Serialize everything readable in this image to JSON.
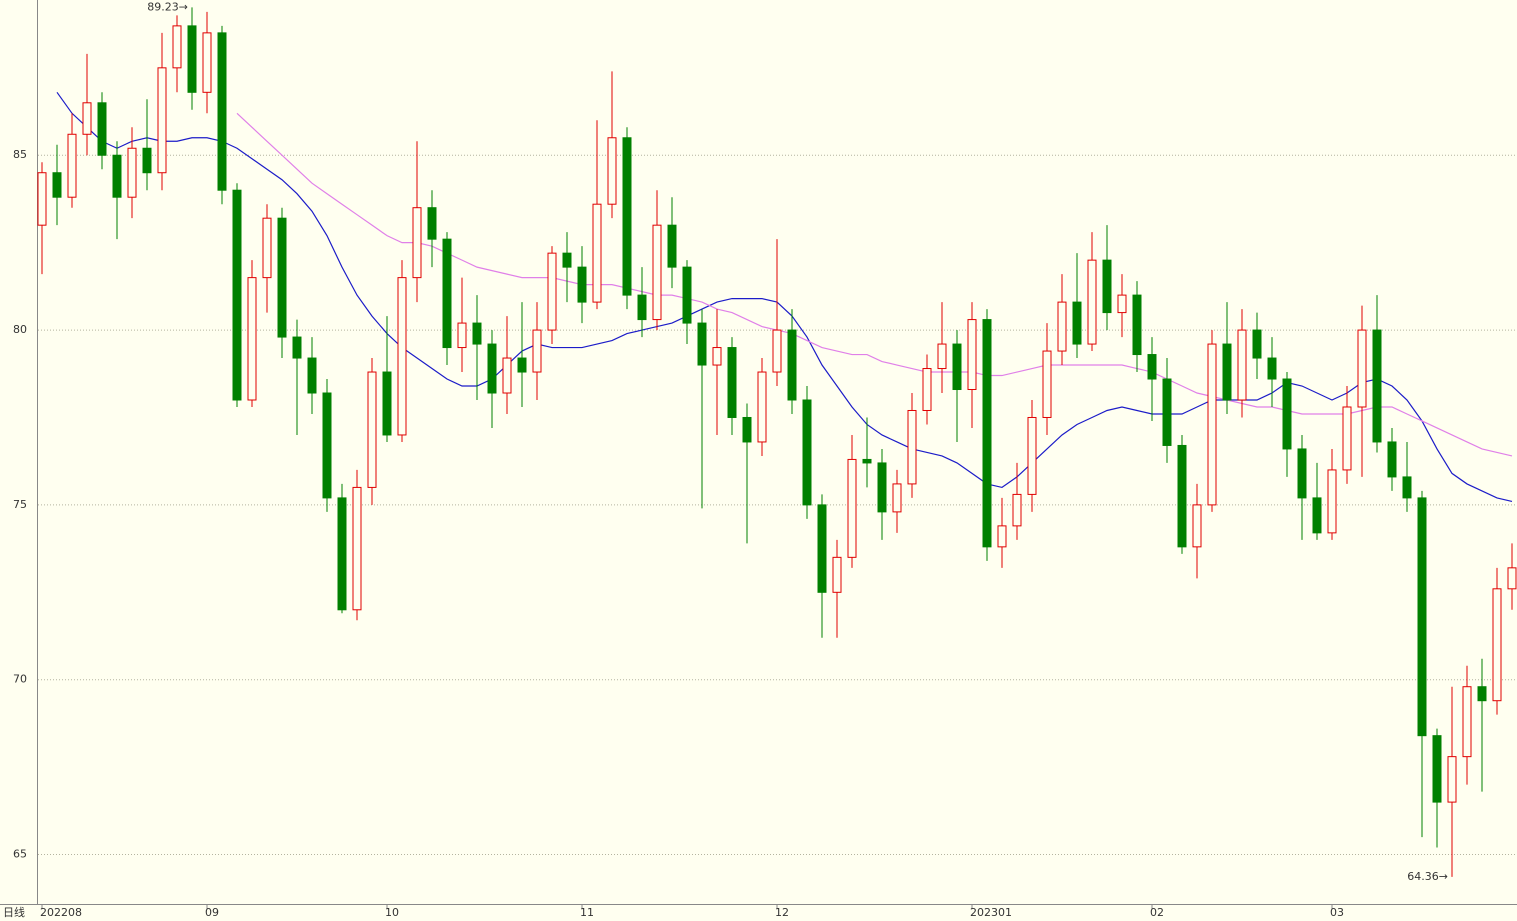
{
  "chart_data": {
    "type": "candlestick",
    "period_label": "日线",
    "categories": [
      "202208",
      null,
      null,
      null,
      null,
      null,
      null,
      null,
      null,
      null,
      null,
      "09",
      null,
      null,
      null,
      null,
      null,
      null,
      null,
      null,
      null,
      null,
      null,
      "10",
      null,
      null,
      null,
      null,
      null,
      null,
      null,
      null,
      null,
      null,
      null,
      null,
      "11",
      null,
      null,
      null,
      null,
      null,
      null,
      null,
      null,
      null,
      null,
      null,
      null,
      "12",
      null,
      null,
      null,
      null,
      null,
      null,
      null,
      null,
      null,
      null,
      null,
      null,
      "202301",
      null,
      null,
      null,
      null,
      null,
      null,
      null,
      null,
      null,
      null,
      null,
      "02",
      null,
      null,
      null,
      null,
      null,
      null,
      null,
      null,
      null,
      null,
      null,
      "03",
      null,
      null,
      null,
      null,
      null,
      null,
      null,
      null,
      null,
      null,
      null,
      null
    ],
    "ohlc": [
      [
        83.0,
        84.8,
        81.6,
        84.5
      ],
      [
        84.5,
        85.3,
        83.0,
        83.8
      ],
      [
        83.8,
        86.2,
        83.5,
        85.6
      ],
      [
        85.6,
        87.9,
        85.0,
        86.5
      ],
      [
        86.5,
        86.8,
        84.6,
        85.0
      ],
      [
        85.0,
        85.4,
        82.6,
        83.8
      ],
      [
        83.8,
        85.8,
        83.2,
        85.2
      ],
      [
        85.2,
        86.6,
        84.0,
        84.5
      ],
      [
        84.5,
        88.5,
        84.0,
        87.5
      ],
      [
        87.5,
        89.0,
        86.8,
        88.7
      ],
      [
        88.7,
        89.23,
        86.3,
        86.8
      ],
      [
        86.8,
        89.1,
        86.2,
        88.5
      ],
      [
        88.5,
        88.7,
        83.6,
        84.0
      ],
      [
        84.0,
        84.2,
        77.8,
        78.0
      ],
      [
        78.0,
        82.0,
        77.8,
        81.5
      ],
      [
        81.5,
        83.6,
        80.5,
        83.2
      ],
      [
        83.2,
        83.5,
        79.2,
        79.8
      ],
      [
        79.8,
        80.3,
        77.0,
        79.2
      ],
      [
        79.2,
        79.8,
        77.6,
        78.2
      ],
      [
        78.2,
        78.6,
        74.8,
        75.2
      ],
      [
        75.2,
        75.6,
        71.9,
        72.0
      ],
      [
        72.0,
        76.0,
        71.7,
        75.5
      ],
      [
        75.5,
        79.2,
        75.0,
        78.8
      ],
      [
        78.8,
        80.4,
        76.8,
        77.0
      ],
      [
        77.0,
        82.0,
        76.8,
        81.5
      ],
      [
        81.5,
        85.4,
        80.8,
        83.5
      ],
      [
        83.5,
        84.0,
        81.8,
        82.6
      ],
      [
        82.6,
        82.8,
        79.0,
        79.5
      ],
      [
        79.5,
        81.5,
        78.8,
        80.2
      ],
      [
        80.2,
        81.0,
        78.0,
        79.6
      ],
      [
        79.6,
        80.0,
        77.2,
        78.2
      ],
      [
        78.2,
        80.4,
        77.6,
        79.2
      ],
      [
        79.2,
        80.8,
        77.8,
        78.8
      ],
      [
        78.8,
        80.8,
        78.0,
        80.0
      ],
      [
        80.0,
        82.4,
        79.6,
        82.2
      ],
      [
        82.2,
        82.8,
        80.8,
        81.8
      ],
      [
        81.8,
        82.4,
        80.2,
        80.8
      ],
      [
        80.8,
        86.0,
        80.6,
        83.6
      ],
      [
        83.6,
        87.4,
        83.2,
        85.5
      ],
      [
        85.5,
        85.8,
        80.6,
        81.0
      ],
      [
        81.0,
        81.8,
        79.8,
        80.3
      ],
      [
        80.3,
        84.0,
        80.0,
        83.0
      ],
      [
        83.0,
        83.8,
        81.2,
        81.8
      ],
      [
        81.8,
        82.0,
        79.6,
        80.2
      ],
      [
        80.2,
        80.6,
        74.9,
        79.0
      ],
      [
        79.0,
        80.6,
        77.0,
        79.5
      ],
      [
        79.5,
        79.8,
        77.0,
        77.5
      ],
      [
        77.5,
        77.9,
        73.9,
        76.8
      ],
      [
        76.8,
        79.2,
        76.4,
        78.8
      ],
      [
        78.8,
        82.6,
        78.4,
        80.0
      ],
      [
        80.0,
        80.6,
        77.6,
        78.0
      ],
      [
        78.0,
        78.4,
        74.6,
        75.0
      ],
      [
        75.0,
        75.3,
        71.2,
        72.5
      ],
      [
        72.5,
        74.0,
        71.2,
        73.5
      ],
      [
        73.5,
        77.0,
        73.2,
        76.3
      ],
      [
        76.3,
        77.5,
        75.5,
        76.2
      ],
      [
        76.2,
        76.6,
        74.0,
        74.8
      ],
      [
        74.8,
        76.0,
        74.2,
        75.6
      ],
      [
        75.6,
        78.2,
        75.2,
        77.7
      ],
      [
        77.7,
        79.3,
        77.3,
        78.9
      ],
      [
        78.9,
        80.8,
        78.2,
        79.6
      ],
      [
        79.6,
        80.0,
        76.8,
        78.3
      ],
      [
        78.3,
        80.8,
        77.2,
        80.3
      ],
      [
        80.3,
        80.6,
        73.4,
        73.8
      ],
      [
        73.8,
        75.2,
        73.2,
        74.4
      ],
      [
        74.4,
        76.2,
        74.0,
        75.3
      ],
      [
        75.3,
        78.0,
        74.8,
        77.5
      ],
      [
        77.5,
        80.2,
        77.0,
        79.4
      ],
      [
        79.4,
        81.6,
        79.0,
        80.8
      ],
      [
        80.8,
        82.2,
        79.2,
        79.6
      ],
      [
        79.6,
        82.8,
        79.4,
        82.0
      ],
      [
        82.0,
        83.0,
        80.0,
        80.5
      ],
      [
        80.5,
        81.6,
        79.8,
        81.0
      ],
      [
        81.0,
        81.4,
        78.8,
        79.3
      ],
      [
        79.3,
        79.8,
        77.4,
        78.6
      ],
      [
        78.6,
        79.2,
        76.2,
        76.7
      ],
      [
        76.7,
        77.0,
        73.6,
        73.8
      ],
      [
        73.8,
        75.6,
        72.9,
        75.0
      ],
      [
        75.0,
        80.0,
        74.8,
        79.6
      ],
      [
        79.6,
        80.8,
        77.6,
        78.0
      ],
      [
        78.0,
        80.6,
        77.5,
        80.0
      ],
      [
        80.0,
        80.5,
        78.6,
        79.2
      ],
      [
        79.2,
        79.8,
        77.8,
        78.6
      ],
      [
        78.6,
        78.8,
        75.8,
        76.6
      ],
      [
        76.6,
        77.0,
        74.0,
        75.2
      ],
      [
        75.2,
        76.2,
        74.0,
        74.2
      ],
      [
        74.2,
        76.6,
        74.0,
        76.0
      ],
      [
        76.0,
        78.4,
        75.6,
        77.8
      ],
      [
        77.8,
        80.7,
        75.8,
        80.0
      ],
      [
        80.0,
        81.0,
        76.5,
        76.8
      ],
      [
        76.8,
        77.2,
        75.4,
        75.8
      ],
      [
        75.8,
        76.8,
        74.8,
        75.2
      ],
      [
        75.2,
        75.4,
        65.5,
        68.4
      ],
      [
        68.4,
        68.6,
        65.2,
        66.5
      ],
      [
        66.5,
        69.8,
        64.36,
        67.8
      ],
      [
        67.8,
        70.4,
        67.0,
        69.8
      ],
      [
        69.8,
        70.6,
        66.8,
        69.4
      ],
      [
        69.4,
        73.2,
        69.0,
        72.6
      ],
      [
        72.6,
        73.9,
        72.0,
        73.2
      ]
    ],
    "up_color": "#e00000",
    "down_color": "#008000",
    "series": [
      {
        "color": "#1c1cc8",
        "values": [
          null,
          86.8,
          86.2,
          85.8,
          85.4,
          85.2,
          85.4,
          85.5,
          85.4,
          85.4,
          85.5,
          85.5,
          85.4,
          85.2,
          84.9,
          84.6,
          84.3,
          83.9,
          83.4,
          82.7,
          81.8,
          81.0,
          80.4,
          79.9,
          79.5,
          79.2,
          78.9,
          78.6,
          78.4,
          78.4,
          78.6,
          79.0,
          79.4,
          79.6,
          79.5,
          79.5,
          79.5,
          79.6,
          79.7,
          79.9,
          80.0,
          80.1,
          80.2,
          80.4,
          80.6,
          80.8,
          80.9,
          80.9,
          80.9,
          80.8,
          80.4,
          79.8,
          79.0,
          78.4,
          77.8,
          77.3,
          77.0,
          76.8,
          76.6,
          76.5,
          76.4,
          76.2,
          75.9,
          75.6,
          75.5,
          75.8,
          76.2,
          76.6,
          77.0,
          77.3,
          77.5,
          77.7,
          77.8,
          77.7,
          77.6,
          77.6,
          77.6,
          77.8,
          78.0,
          78.0,
          78.0,
          78.0,
          78.2,
          78.5,
          78.4,
          78.2,
          78.0,
          78.2,
          78.5,
          78.6,
          78.4,
          78.0,
          77.4,
          76.6,
          75.9,
          75.6,
          75.4,
          75.2,
          75.1
        ]
      },
      {
        "color": "#e080e8",
        "values": [
          null,
          null,
          null,
          null,
          null,
          null,
          null,
          null,
          null,
          null,
          null,
          null,
          null,
          86.2,
          85.8,
          85.4,
          85.0,
          84.6,
          84.2,
          83.9,
          83.6,
          83.3,
          83.0,
          82.7,
          82.5,
          82.5,
          82.4,
          82.2,
          82.0,
          81.8,
          81.7,
          81.6,
          81.5,
          81.5,
          81.5,
          81.4,
          81.3,
          81.3,
          81.3,
          81.2,
          81.1,
          81.0,
          81.0,
          80.9,
          80.8,
          80.6,
          80.5,
          80.3,
          80.1,
          80.0,
          79.9,
          79.7,
          79.5,
          79.4,
          79.3,
          79.3,
          79.1,
          79.0,
          78.9,
          78.8,
          78.8,
          78.8,
          78.8,
          78.7,
          78.7,
          78.8,
          78.9,
          79.0,
          79.0,
          79.0,
          79.0,
          79.0,
          79.0,
          78.9,
          78.8,
          78.6,
          78.4,
          78.2,
          78.1,
          78.0,
          77.9,
          77.8,
          77.8,
          77.7,
          77.6,
          77.6,
          77.6,
          77.6,
          77.7,
          77.8,
          77.8,
          77.6,
          77.4,
          77.2,
          77.0,
          76.8,
          76.6,
          76.5,
          76.4
        ]
      }
    ],
    "annotations": [
      {
        "label": "89.23→"
      },
      {
        "label": "64.36→"
      }
    ],
    "ylim": [
      63.7,
      89.44
    ],
    "yticks": [
      65,
      70,
      75,
      80,
      85
    ],
    "grid": true
  }
}
